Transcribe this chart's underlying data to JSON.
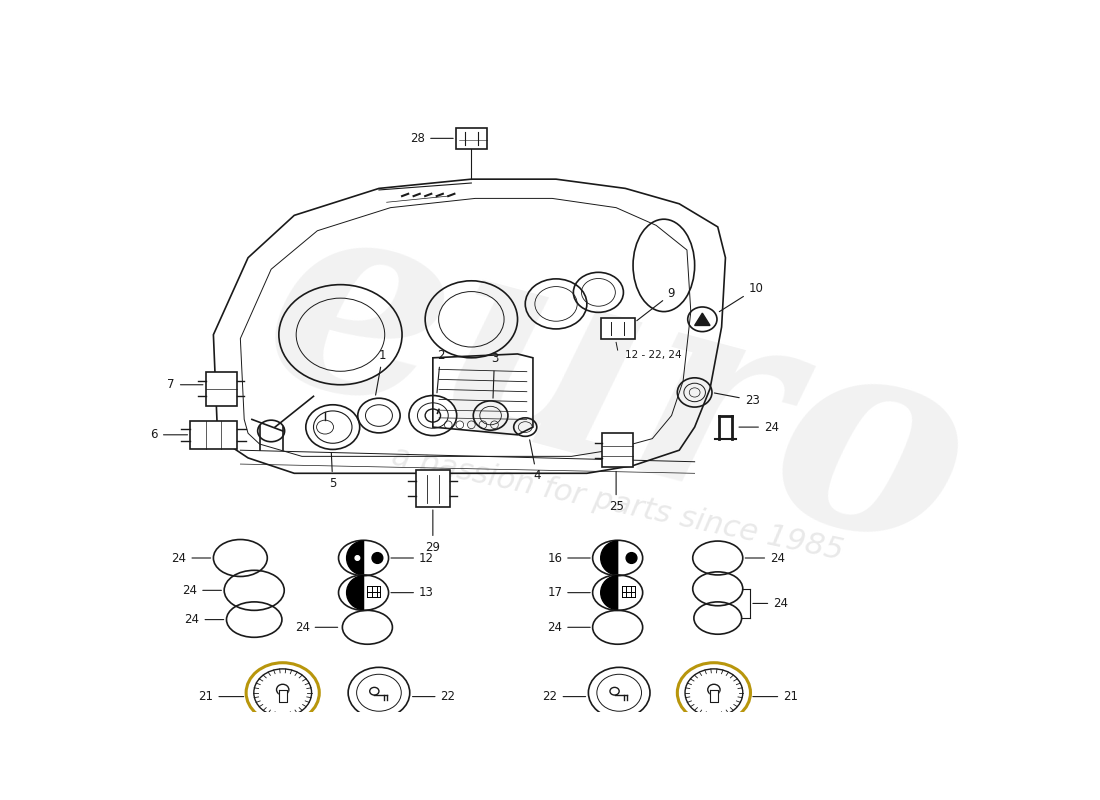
{
  "bg_color": "#ffffff",
  "line_color": "#1a1a1a",
  "watermark_color1": "#c0c0c0",
  "watermark_color2": "#b8b8b8",
  "fig_w": 11.0,
  "fig_h": 8.0,
  "dpi": 100
}
